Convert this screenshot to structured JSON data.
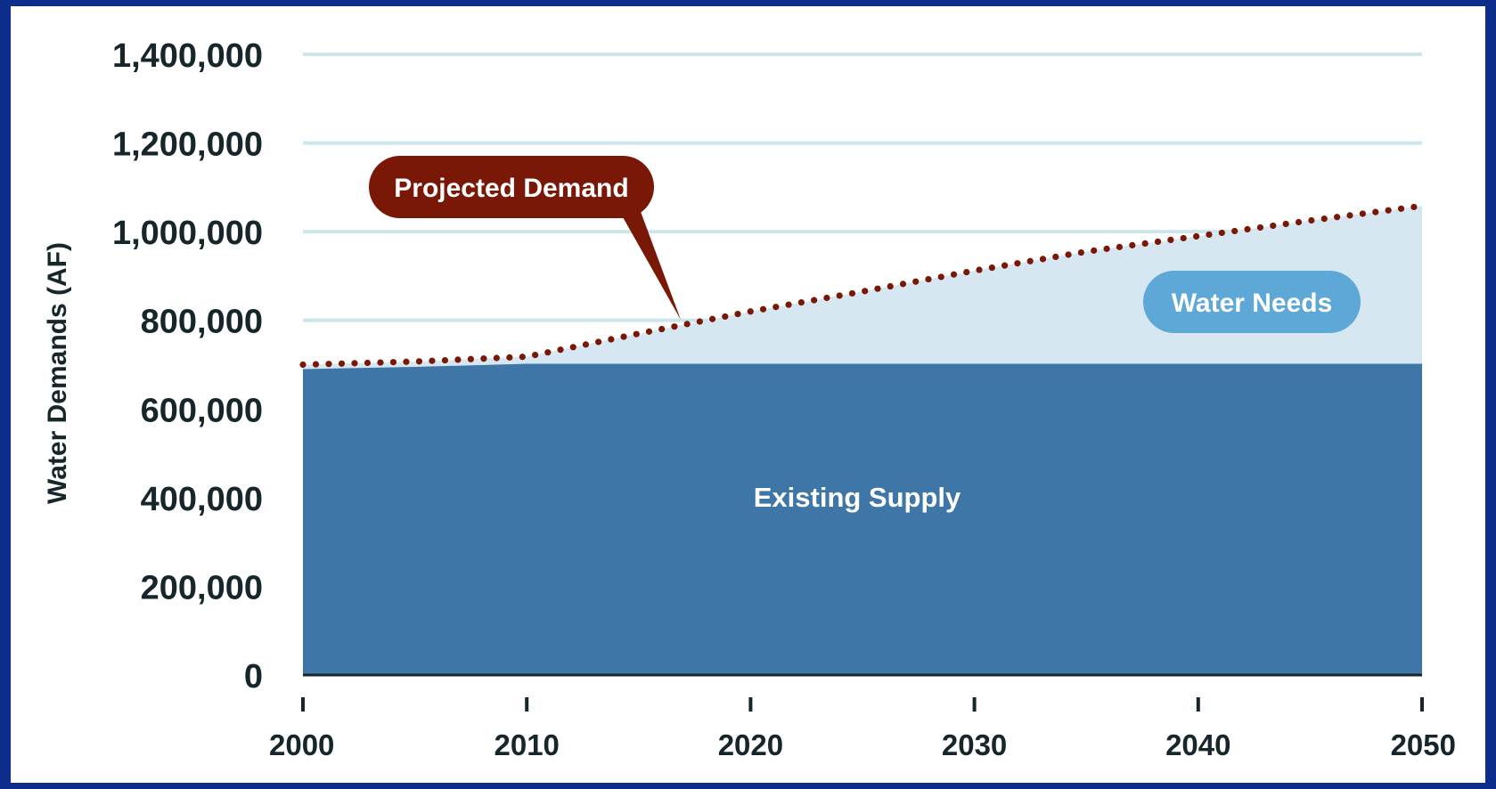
{
  "chart_data": {
    "type": "area",
    "ylabel": "Water Demands (AF)",
    "xlabel": "",
    "title": "",
    "x": [
      2000,
      2010,
      2020,
      2030,
      2040,
      2050
    ],
    "xlim": [
      2000,
      2050
    ],
    "ylim": [
      0,
      1400000
    ],
    "x_ticks": [
      "2000",
      "2010",
      "2020",
      "2030",
      "2040",
      "2050"
    ],
    "y_ticks": [
      "0",
      "200,000",
      "400,000",
      "600,000",
      "800,000",
      "1,000,000",
      "1,200,000",
      "1,400,000"
    ],
    "grid": true,
    "series": [
      {
        "name": "Existing Supply",
        "style": "filled-area",
        "color": "#3e76a8",
        "x": [
          2000,
          2005,
          2010,
          2020,
          2030,
          2040,
          2050
        ],
        "values": [
          690000,
          695000,
          702000,
          702000,
          702000,
          702000,
          702000
        ]
      },
      {
        "name": "Water Needs",
        "style": "filled-area",
        "color": "#d6e7f2",
        "x": [
          2000,
          2005,
          2010,
          2015,
          2020,
          2025,
          2030,
          2035,
          2040,
          2045,
          2050
        ],
        "values": [
          700000,
          707000,
          718000,
          770000,
          820000,
          865000,
          912000,
          955000,
          990000,
          1025000,
          1058000
        ]
      },
      {
        "name": "Projected Demand",
        "style": "dotted-line",
        "color": "#7a1808",
        "x": [
          2000,
          2005,
          2010,
          2015,
          2020,
          2025,
          2030,
          2035,
          2040,
          2045,
          2050
        ],
        "values": [
          700000,
          707000,
          718000,
          770000,
          820000,
          865000,
          912000,
          955000,
          990000,
          1025000,
          1058000
        ]
      }
    ],
    "annotations": {
      "projected_demand": "Projected Demand",
      "water_needs": "Water Needs",
      "existing_supply": "Existing Supply"
    },
    "colors": {
      "background_border": "#0c2d8c",
      "gridline": "#cde6ee",
      "axis": "#16262b",
      "demand_badge": "#7a1808",
      "needs_badge": "#5ea8d8"
    }
  }
}
